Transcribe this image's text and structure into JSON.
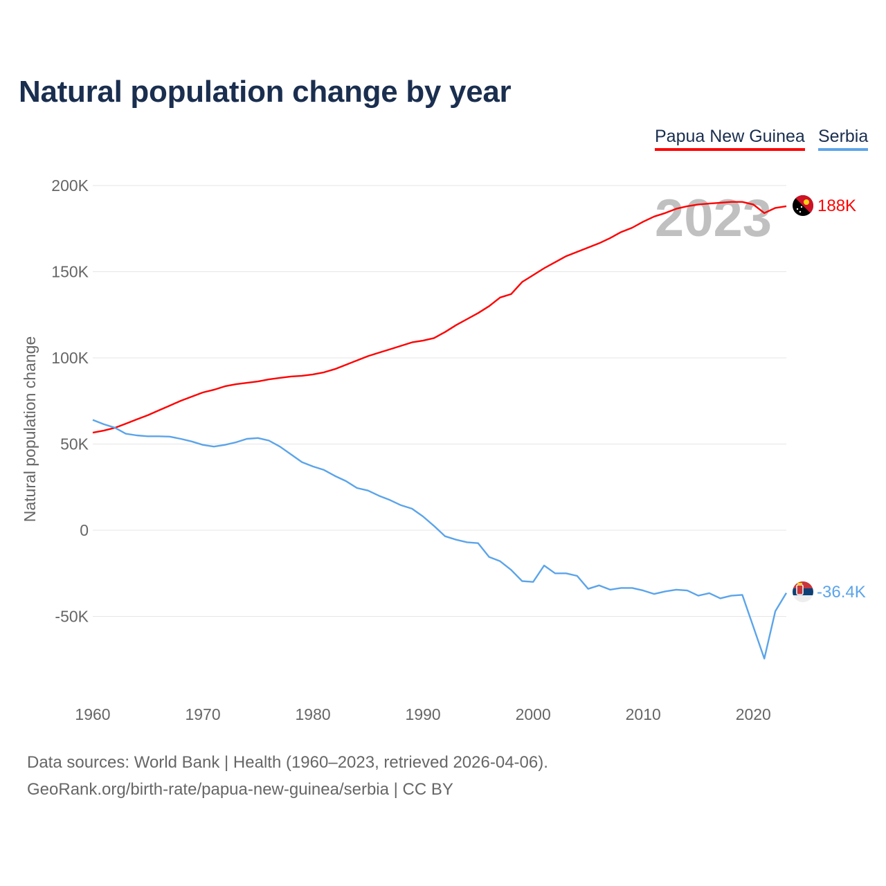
{
  "chart_data": {
    "type": "line",
    "title": "Natural population change by year",
    "xlabel": "",
    "ylabel": "Natural population change",
    "xlim": [
      1960,
      2023
    ],
    "ylim": [
      -95000,
      200000
    ],
    "grid": true,
    "legend_placement": "top-right",
    "x_ticks": [
      "1960",
      "1970",
      "1980",
      "1990",
      "2000",
      "2010",
      "2020"
    ],
    "y_ticks": [
      {
        "value": 200000,
        "label": "200K"
      },
      {
        "value": 150000,
        "label": "150K"
      },
      {
        "value": 100000,
        "label": "100K"
      },
      {
        "value": 50000,
        "label": "50K"
      },
      {
        "value": 0,
        "label": "0"
      },
      {
        "value": -50000,
        "label": "-50K"
      }
    ],
    "year_watermark": "2023",
    "x": [
      1960,
      1961,
      1962,
      1963,
      1964,
      1965,
      1966,
      1967,
      1968,
      1969,
      1970,
      1971,
      1972,
      1973,
      1974,
      1975,
      1976,
      1977,
      1978,
      1979,
      1980,
      1981,
      1982,
      1983,
      1984,
      1985,
      1986,
      1987,
      1988,
      1989,
      1990,
      1991,
      1992,
      1993,
      1994,
      1995,
      1996,
      1997,
      1998,
      1999,
      2000,
      2001,
      2002,
      2003,
      2004,
      2005,
      2006,
      2007,
      2008,
      2009,
      2010,
      2011,
      2012,
      2013,
      2014,
      2015,
      2016,
      2017,
      2018,
      2019,
      2020,
      2021,
      2022,
      2023
    ],
    "series": [
      {
        "name": "Papua New Guinea",
        "color": "#ff0000",
        "end_label": "188K",
        "flag": "papua-new-guinea-flag",
        "values": [
          56600,
          57800,
          59400,
          61800,
          64300,
          66700,
          69500,
          72300,
          75100,
          77500,
          79900,
          81500,
          83500,
          84700,
          85500,
          86300,
          87500,
          88400,
          89200,
          89600,
          90400,
          91600,
          93500,
          96000,
          98500,
          101000,
          103000,
          105000,
          107000,
          109000,
          110000,
          111500,
          115000,
          119000,
          122500,
          126000,
          130000,
          135000,
          137000,
          144000,
          148000,
          152000,
          155500,
          159000,
          161500,
          164000,
          166500,
          169500,
          173000,
          175500,
          179000,
          182000,
          184000,
          186500,
          188000,
          189000,
          189500,
          190000,
          190500,
          190500,
          189000,
          184000,
          187000,
          188000
        ]
      },
      {
        "name": "Serbia",
        "color": "#5ba4ea",
        "end_label": "-36.4K",
        "flag": "serbia-flag",
        "values": [
          64000,
          61500,
          59500,
          56000,
          55000,
          54500,
          54500,
          54300,
          53000,
          51500,
          49500,
          48500,
          49500,
          51000,
          53000,
          53500,
          52000,
          48500,
          44000,
          39500,
          37000,
          35000,
          31500,
          28500,
          24500,
          23000,
          20000,
          17500,
          14500,
          12500,
          8000,
          2500,
          -3500,
          -5500,
          -7000,
          -7500,
          -15500,
          -18000,
          -23000,
          -29500,
          -30000,
          -20500,
          -25000,
          -25000,
          -26500,
          -34000,
          -32000,
          -34500,
          -33500,
          -33500,
          -35000,
          -37000,
          -35500,
          -34500,
          -35000,
          -38000,
          -36500,
          -39500,
          -38000,
          -37500,
          -56000,
          -74500,
          -47000,
          -36400
        ]
      }
    ]
  },
  "footer": {
    "line1": "Data sources: World Bank | Health (1960–2023, retrieved 2026-04-06).",
    "line2": "GeoRank.org/birth-rate/papua-new-guinea/serbia | CC BY"
  }
}
